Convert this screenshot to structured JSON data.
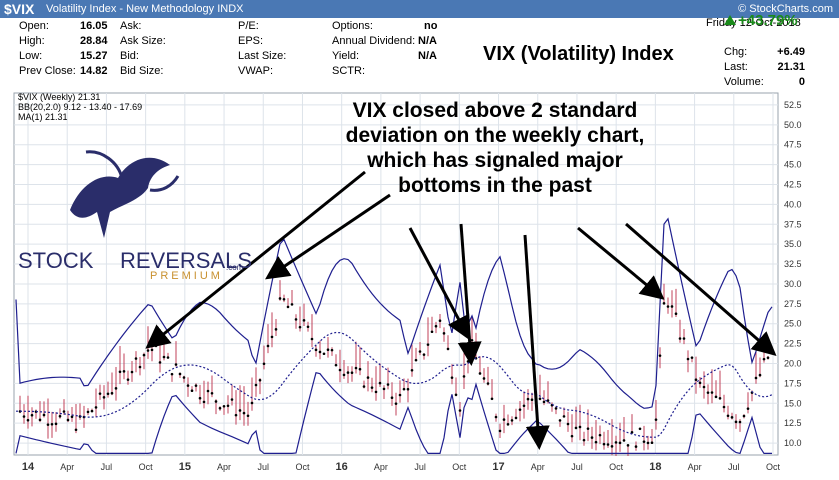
{
  "header": {
    "symbol": "$VIX",
    "name": "Volatility Index - New Methodology INDX",
    "source": "© StockCharts.com"
  },
  "quote": {
    "col1": [
      {
        "label": "Open:",
        "value": "16.05"
      },
      {
        "label": "High:",
        "value": "28.84"
      },
      {
        "label": "Low:",
        "value": "15.27"
      },
      {
        "label": "Prev Close:",
        "value": "14.82"
      }
    ],
    "col2": [
      "Ask:",
      "Ask Size:",
      "Bid:",
      "Bid Size:"
    ],
    "col3": [
      "P/E:",
      "EPS:",
      "Last Size:",
      "VWAP:"
    ],
    "col4": [
      {
        "label": "Options:",
        "value": "no"
      },
      {
        "label": "Annual Dividend:",
        "value": "N/A"
      },
      {
        "label": "Yield:",
        "value": "N/A"
      },
      {
        "label": "SCTR:",
        "value": ""
      }
    ],
    "title": "VIX (Volatility) Index",
    "date": "Friday  12-Oct-2018",
    "change_pct": "+43.79%",
    "col5": [
      {
        "label": "Chg:",
        "value": "+6.49"
      },
      {
        "label": "Last:",
        "value": "21.31"
      },
      {
        "label": "Volume:",
        "value": "0"
      }
    ]
  },
  "legend": {
    "price": "$VIX (Weekly) 21.31",
    "bb": "BB(20,2.0) 9.12 - 13.40 - 17.69",
    "ma": "MA(1) 21.31"
  },
  "annotation": "VIX closed above 2 standard deviation on the weekly chart, which has signaled major bottoms in the past",
  "logo": {
    "stock": "STOCK",
    "reversals": "REVERSALS",
    "premium": "PREMIUM",
    "com": ".com"
  },
  "colors": {
    "header_bg": "#4a78b4",
    "bands": "#1f1f8f",
    "wick": "#c0405a",
    "close": "#000000",
    "positive": "#1a8a1a",
    "grid": "#dde3ea"
  },
  "chart_data": {
    "type": "line",
    "title": "VIX (Volatility) Index",
    "ylim": [
      8.5,
      54
    ],
    "yticks": [
      10.0,
      12.5,
      15.0,
      17.5,
      20.0,
      22.5,
      25.0,
      27.5,
      30.0,
      32.5,
      35.0,
      37.5,
      40.0,
      42.5,
      45.0,
      47.5,
      50.0,
      52.5
    ],
    "xticks": [
      "14",
      "Apr",
      "Jul",
      "Oct",
      "15",
      "Apr",
      "Jul",
      "Oct",
      "16",
      "Apr",
      "Jul",
      "Oct",
      "17",
      "Apr",
      "Jul",
      "Oct",
      "18",
      "Apr",
      "Jul",
      "Oct"
    ],
    "grid": true,
    "key_closes": [
      {
        "label": "Oct 2014",
        "value": 22.0
      },
      {
        "label": "Aug 2015",
        "value": 28.0
      },
      {
        "label": "Jun 2016",
        "value": 25.8
      },
      {
        "label": "Nov 2016",
        "value": 22.5
      },
      {
        "label": "Apr 2017",
        "value": 16.0
      },
      {
        "label": "Feb 2018",
        "value": 29.0
      },
      {
        "label": "Oct 2018",
        "value": 21.31
      }
    ],
    "series": [
      {
        "name": "BB(20,2.0) 9.12 - 13.40 - 17.69",
        "values": [
          17.69,
          13.4,
          9.12
        ]
      },
      {
        "name": "MA(1) 21.31",
        "values": [
          21.31
        ]
      }
    ]
  }
}
